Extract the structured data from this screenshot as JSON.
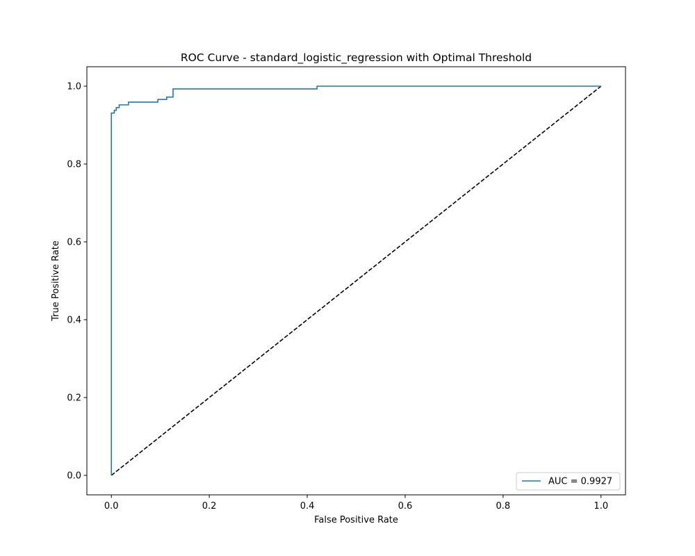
{
  "chart_data": {
    "type": "line",
    "title": "ROC Curve - standard_logistic_regression with Optimal Threshold",
    "xlabel": "False Positive Rate",
    "ylabel": "True Positive Rate",
    "xlim": [
      -0.05,
      1.05
    ],
    "ylim": [
      -0.05,
      1.05
    ],
    "xticks": [
      0.0,
      0.2,
      0.4,
      0.6,
      0.8,
      1.0
    ],
    "yticks": [
      0.0,
      0.2,
      0.4,
      0.6,
      0.8,
      1.0
    ],
    "xtick_labels": [
      "0.0",
      "0.2",
      "0.4",
      "0.6",
      "0.8",
      "1.0"
    ],
    "ytick_labels": [
      "0.0",
      "0.2",
      "0.4",
      "0.6",
      "0.8",
      "1.0"
    ],
    "grid": false,
    "legend_position": "lower-right",
    "series": [
      {
        "name": "AUC = 0.9927",
        "color": "#1f77b4",
        "style": "solid",
        "x": [
          0.0,
          0.0,
          0.0,
          0.006,
          0.006,
          0.01,
          0.01,
          0.016,
          0.016,
          0.035,
          0.035,
          0.095,
          0.095,
          0.113,
          0.113,
          0.126,
          0.126,
          0.42,
          0.42,
          1.0
        ],
        "y": [
          0.0,
          0.931,
          0.931,
          0.931,
          0.938,
          0.938,
          0.945,
          0.945,
          0.952,
          0.952,
          0.959,
          0.959,
          0.966,
          0.966,
          0.972,
          0.972,
          0.993,
          0.993,
          1.0,
          1.0
        ]
      },
      {
        "name": "",
        "color": "#000000",
        "style": "dashed",
        "x": [
          0.0,
          1.0
        ],
        "y": [
          0.0,
          1.0
        ]
      }
    ]
  }
}
